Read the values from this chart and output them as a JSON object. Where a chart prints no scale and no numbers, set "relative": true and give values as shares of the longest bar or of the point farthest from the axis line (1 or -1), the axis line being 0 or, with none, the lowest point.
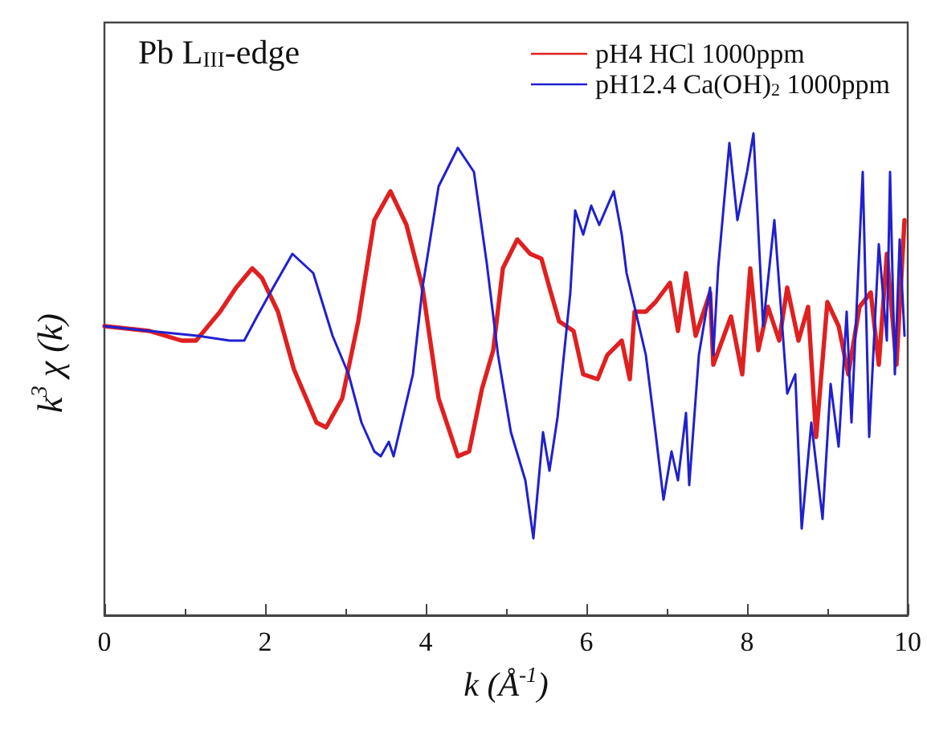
{
  "chart_data": {
    "type": "line",
    "relative": true,
    "xlabel": "k (Å$^{-1}$)",
    "ylabel": "k$^{3}$ χ (k)",
    "annotations": [
      "Pb L$_{III}$-edge"
    ],
    "xlim": [
      0,
      10
    ],
    "xticks": [
      0,
      2,
      4,
      6,
      8,
      10
    ],
    "grid": false,
    "legend": "top right",
    "marker": "none",
    "line_style": "solid",
    "series": [
      {
        "name": "pH4 HCl 1000ppm",
        "color": "#e02020",
        "x": [
          0,
          0.56,
          0.96,
          1.14,
          1.44,
          1.64,
          1.84,
          1.96,
          2.16,
          2.36,
          2.64,
          2.76,
          2.96,
          3.16,
          3.36,
          3.56,
          3.76,
          3.96,
          4.16,
          4.4,
          4.54,
          4.7,
          4.84,
          4.96,
          5.14,
          5.3,
          5.44,
          5.54,
          5.66,
          5.84,
          5.96,
          6.14,
          6.26,
          6.44,
          6.54,
          6.6,
          6.74,
          6.86,
          7.04,
          7.14,
          7.24,
          7.36,
          7.54,
          7.58,
          7.8,
          7.94,
          8.04,
          8.14,
          8.26,
          8.4,
          8.5,
          8.64,
          8.76,
          8.86,
          9.0,
          9.14,
          9.26,
          9.4,
          9.54,
          9.64,
          9.74,
          9.86,
          9.96
        ],
        "values": [
          0.6,
          0.59,
          0.57,
          0.57,
          0.63,
          0.68,
          0.72,
          0.7,
          0.63,
          0.51,
          0.4,
          0.39,
          0.45,
          0.61,
          0.82,
          0.88,
          0.81,
          0.68,
          0.45,
          0.33,
          0.34,
          0.47,
          0.55,
          0.72,
          0.78,
          0.75,
          0.74,
          0.68,
          0.61,
          0.59,
          0.5,
          0.49,
          0.54,
          0.57,
          0.49,
          0.63,
          0.63,
          0.65,
          0.69,
          0.59,
          0.71,
          0.58,
          0.67,
          0.52,
          0.62,
          0.5,
          0.72,
          0.55,
          0.64,
          0.57,
          0.68,
          0.57,
          0.64,
          0.37,
          0.65,
          0.6,
          0.5,
          0.64,
          0.67,
          0.52,
          0.75,
          0.52,
          0.82
        ]
      },
      {
        "name": "pH12.4 Ca(OH)$_{2}$ 1000ppm",
        "color": "#2020d0",
        "x": [
          0,
          0.56,
          1.16,
          1.56,
          1.74,
          1.9,
          2.1,
          2.34,
          2.6,
          2.84,
          3.04,
          3.2,
          3.36,
          3.44,
          3.54,
          3.6,
          3.84,
          3.96,
          4.16,
          4.4,
          4.6,
          4.76,
          4.9,
          5.06,
          5.24,
          5.34,
          5.46,
          5.54,
          5.64,
          5.8,
          5.86,
          5.96,
          6.06,
          6.16,
          6.34,
          6.44,
          6.5,
          6.6,
          6.74,
          6.86,
          6.96,
          7.06,
          7.14,
          7.24,
          7.28,
          7.4,
          7.54,
          7.58,
          7.64,
          7.78,
          7.88,
          8.0,
          8.08,
          8.2,
          8.34,
          8.5,
          8.6,
          8.68,
          8.8,
          8.94,
          9.04,
          9.14,
          9.24,
          9.3,
          9.44,
          9.52,
          9.64,
          9.74,
          9.78,
          9.84,
          9.9,
          9.96
        ],
        "values": [
          0.6,
          0.59,
          0.58,
          0.57,
          0.57,
          0.62,
          0.68,
          0.75,
          0.71,
          0.58,
          0.5,
          0.4,
          0.34,
          0.33,
          0.36,
          0.33,
          0.5,
          0.68,
          0.89,
          0.97,
          0.92,
          0.73,
          0.54,
          0.38,
          0.28,
          0.16,
          0.38,
          0.3,
          0.41,
          0.67,
          0.84,
          0.79,
          0.85,
          0.81,
          0.88,
          0.79,
          0.71,
          0.64,
          0.54,
          0.38,
          0.24,
          0.34,
          0.28,
          0.42,
          0.27,
          0.54,
          0.68,
          0.54,
          0.72,
          0.98,
          0.82,
          0.92,
          1.0,
          0.6,
          0.82,
          0.46,
          0.5,
          0.18,
          0.4,
          0.2,
          0.48,
          0.35,
          0.63,
          0.4,
          0.92,
          0.37,
          0.77,
          0.57,
          0.92,
          0.5,
          0.78,
          0.58
        ]
      }
    ]
  }
}
